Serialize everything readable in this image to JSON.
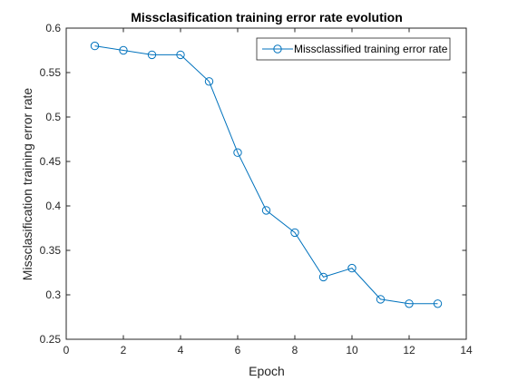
{
  "chart_data": {
    "type": "line",
    "title": "Missclasification training error rate evolution",
    "xlabel": "Epoch",
    "ylabel": "Missclasification training error rate",
    "xlim": [
      0,
      14
    ],
    "ylim": [
      0.25,
      0.6
    ],
    "xticks": [
      "0",
      "2",
      "4",
      "6",
      "8",
      "10",
      "12",
      "14"
    ],
    "yticks": [
      "0.25",
      "0.3",
      "0.35",
      "0.4",
      "0.45",
      "0.5",
      "0.55",
      "0.6"
    ],
    "grid": false,
    "legend_position": "top-right",
    "series": [
      {
        "name": "Missclassified training error rate",
        "color": "#0072BD",
        "marker": "circle",
        "x": [
          1,
          2,
          3,
          4,
          5,
          6,
          7,
          8,
          9,
          10,
          11,
          12,
          13
        ],
        "y": [
          0.58,
          0.575,
          0.57,
          0.57,
          0.54,
          0.46,
          0.395,
          0.37,
          0.32,
          0.33,
          0.295,
          0.29,
          0.29
        ]
      }
    ]
  }
}
